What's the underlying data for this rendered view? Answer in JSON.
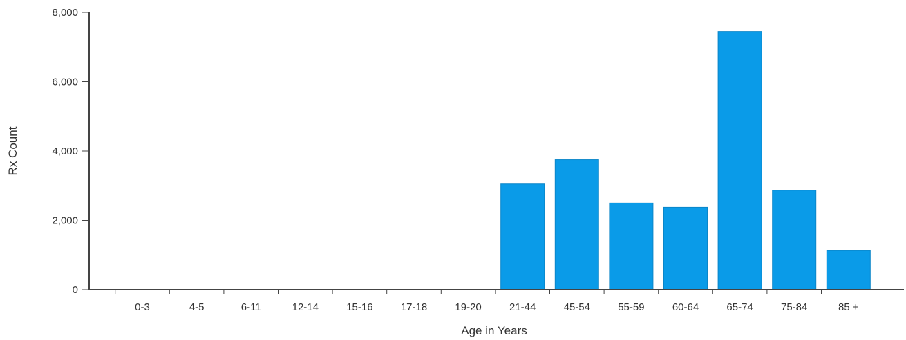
{
  "chart_data": {
    "type": "bar",
    "title": "",
    "xlabel": "Age in Years",
    "ylabel": "Rx Count",
    "categories": [
      "0-3",
      "4-5",
      "6-11",
      "12-14",
      "15-16",
      "17-18",
      "19-20",
      "21-44",
      "45-54",
      "55-59",
      "60-64",
      "65-74",
      "75-84",
      "85 +"
    ],
    "values": [
      0,
      0,
      0,
      0,
      0,
      0,
      0,
      3050,
      3750,
      2500,
      2380,
      7450,
      2870,
      1130
    ],
    "ylim": [
      0,
      8000
    ],
    "yticks": [
      "0",
      "2,000",
      "4,000",
      "6,000",
      "8,000"
    ],
    "ytick_values": [
      0,
      2000,
      4000,
      6000,
      8000
    ],
    "grid": false,
    "bar_color": "#0A9BE8"
  }
}
